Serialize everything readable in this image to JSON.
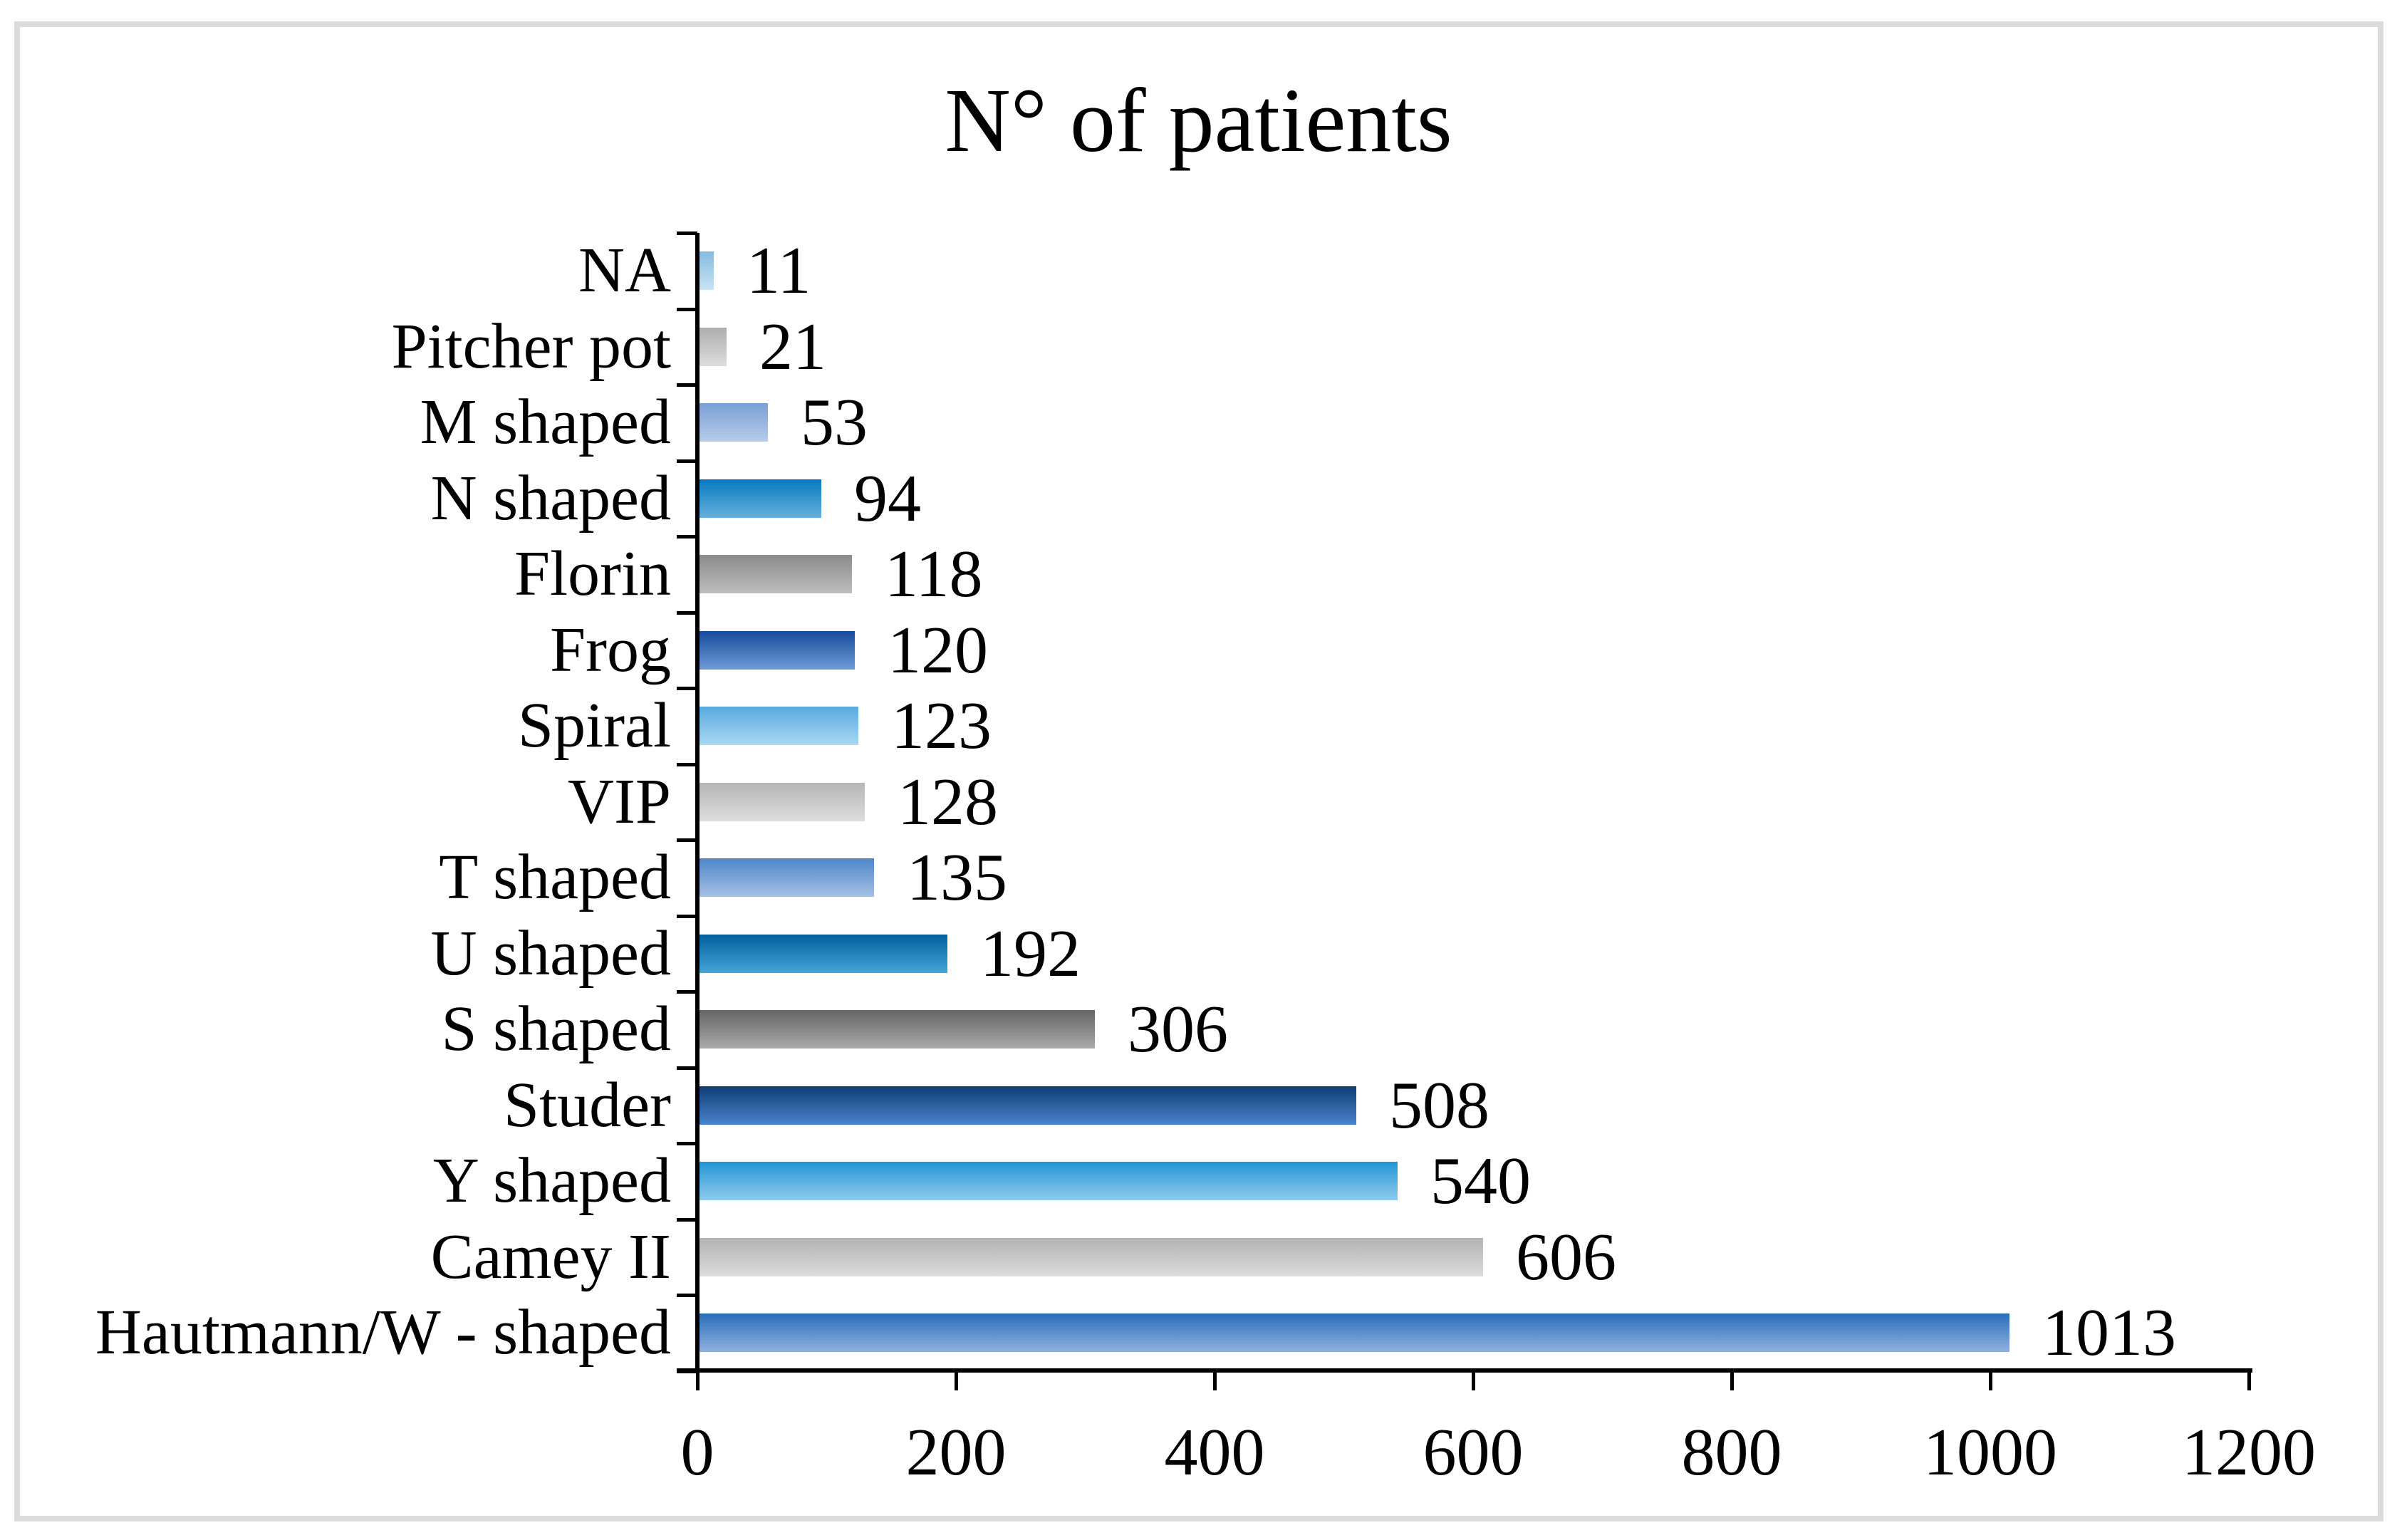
{
  "title": "N° of patients",
  "frame": {
    "border_color": "#DBDBDB"
  },
  "axis": {
    "color": "#000000"
  },
  "chart_data": {
    "type": "bar",
    "orientation": "horizontal",
    "title": "N° of patients",
    "xlabel": "",
    "ylabel": "",
    "xlim": [
      0,
      1200
    ],
    "x_ticks": [
      "0",
      "200",
      "400",
      "600",
      "800",
      "1000",
      "1200"
    ],
    "grid": false,
    "legend": false,
    "value_labels_shown": true,
    "categories": [
      "NA",
      "Pitcher pot",
      "M shaped",
      "N shaped",
      "Florin",
      "Frog",
      "Spiral",
      "VIP",
      "T shaped",
      "U shaped",
      "S shaped",
      "Studer",
      "Y shaped",
      "Camey II",
      "Hautmann/W - shaped"
    ],
    "values": [
      11,
      21,
      53,
      94,
      118,
      120,
      123,
      128,
      135,
      192,
      306,
      508,
      540,
      606,
      1013
    ],
    "value_labels": [
      "11",
      "21",
      "53",
      "94",
      "118",
      "120",
      "123",
      "128",
      "135",
      "192",
      "306",
      "508",
      "540",
      "606",
      "1013"
    ],
    "bar_gradients": [
      {
        "top": "#85BCE2",
        "bottom": "#C9E3F4"
      },
      {
        "top": "#AFAEAE",
        "bottom": "#DEDDDD"
      },
      {
        "top": "#7AA0D4",
        "bottom": "#B6CCE9"
      },
      {
        "top": "#077ABE",
        "bottom": "#65B0DD"
      },
      {
        "top": "#8C8B8B",
        "bottom": "#BFBEBE"
      },
      {
        "top": "#174A9B",
        "bottom": "#6F9BD6"
      },
      {
        "top": "#57AADF",
        "bottom": "#ABD7F2"
      },
      {
        "top": "#B7B6B6",
        "bottom": "#DEDDDD"
      },
      {
        "top": "#4F87C9",
        "bottom": "#A5C0E5"
      },
      {
        "top": "#01609B",
        "bottom": "#44A5D9"
      },
      {
        "top": "#666565",
        "bottom": "#ABAAAA"
      },
      {
        "top": "#0E3C76",
        "bottom": "#4A83CA"
      },
      {
        "top": "#2197D5",
        "bottom": "#92CAEC"
      },
      {
        "top": "#B4B3B3",
        "bottom": "#DDDCDC"
      },
      {
        "top": "#2A6DB8",
        "bottom": "#90B1DF"
      }
    ]
  }
}
